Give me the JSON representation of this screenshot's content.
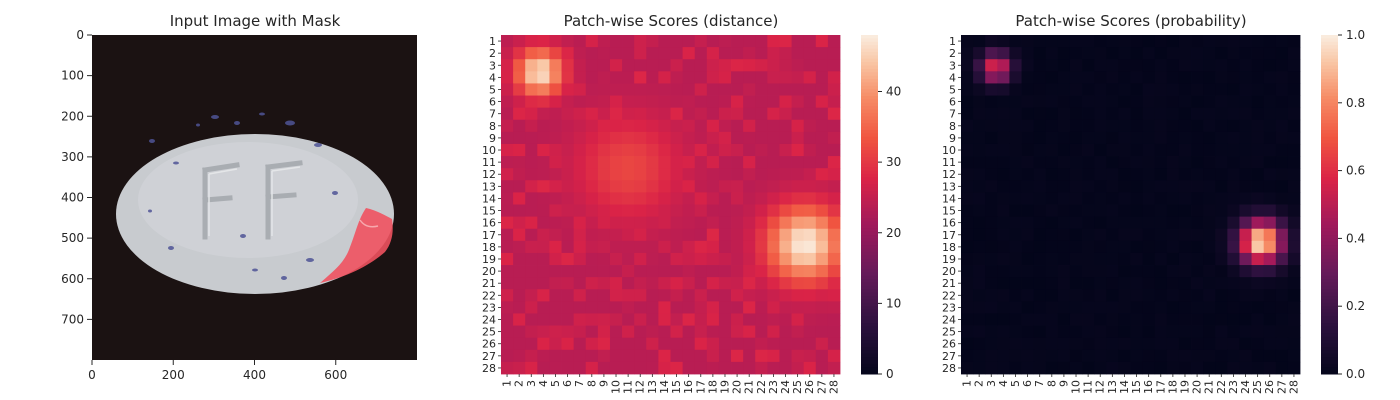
{
  "chart_data": [
    {
      "type": "image",
      "title": "Input Image with Mask",
      "xticks": [
        0,
        200,
        400,
        600
      ],
      "yticks": [
        0,
        100,
        200,
        300,
        400,
        500,
        600,
        700
      ],
      "xlim": [
        0,
        800
      ],
      "ylim": [
        800,
        0
      ],
      "colors": {
        "background": "#1b1212",
        "pill": "#c9ccd0",
        "speckle": "#4a4f93",
        "mask": "#f0525f"
      }
    },
    {
      "type": "heatmap",
      "title": "Patch-wise Scores (distance)",
      "x_tick_labels": [
        "1",
        "2",
        "3",
        "4",
        "5",
        "6",
        "7",
        "8",
        "9",
        "10",
        "11",
        "12",
        "13",
        "14",
        "15",
        "16",
        "17",
        "18",
        "19",
        "20",
        "21",
        "22",
        "23",
        "24",
        "25",
        "26",
        "27",
        "28"
      ],
      "y_tick_labels": [
        "1",
        "2",
        "3",
        "4",
        "5",
        "6",
        "7",
        "8",
        "9",
        "10",
        "11",
        "12",
        "13",
        "14",
        "15",
        "16",
        "17",
        "18",
        "19",
        "20",
        "21",
        "22",
        "23",
        "24",
        "25",
        "26",
        "27",
        "28"
      ],
      "grid_size": 28,
      "value_range": [
        0,
        48
      ],
      "colorbar_ticks": [
        0,
        10,
        20,
        30,
        40
      ],
      "colormap": "rocket",
      "baseline": 24,
      "hotspots": [
        {
          "row": 3.6,
          "col": 3.7,
          "peak": 47,
          "sigma": 1.4
        },
        {
          "row": 17.8,
          "col": 25.6,
          "peak": 48,
          "sigma": 2.2
        },
        {
          "row": 11.5,
          "col": 11.0,
          "peak": 32,
          "sigma": 3.0
        }
      ]
    },
    {
      "type": "heatmap",
      "title": "Patch-wise Scores (probability)",
      "x_tick_labels": [
        "1",
        "2",
        "3",
        "4",
        "5",
        "6",
        "7",
        "8",
        "9",
        "10",
        "11",
        "12",
        "13",
        "14",
        "15",
        "16",
        "17",
        "18",
        "19",
        "20",
        "21",
        "22",
        "23",
        "24",
        "25",
        "26",
        "27",
        "28"
      ],
      "y_tick_labels": [
        "1",
        "2",
        "3",
        "4",
        "5",
        "6",
        "7",
        "8",
        "9",
        "10",
        "11",
        "12",
        "13",
        "14",
        "15",
        "16",
        "17",
        "18",
        "19",
        "20",
        "21",
        "22",
        "23",
        "24",
        "25",
        "26",
        "27",
        "28"
      ],
      "grid_size": 28,
      "value_range": [
        0,
        1
      ],
      "colorbar_ticks": [
        "0.0",
        "0.2",
        "0.4",
        "0.6",
        "0.8",
        "1.0"
      ],
      "colormap": "rocket",
      "baseline": 0.0,
      "hotspots": [
        {
          "row": 3.2,
          "col": 3.4,
          "peak": 0.6,
          "sigma": 0.9
        },
        {
          "row": 17.6,
          "col": 25.3,
          "peak": 1.0,
          "sigma": 1.25
        }
      ]
    }
  ]
}
